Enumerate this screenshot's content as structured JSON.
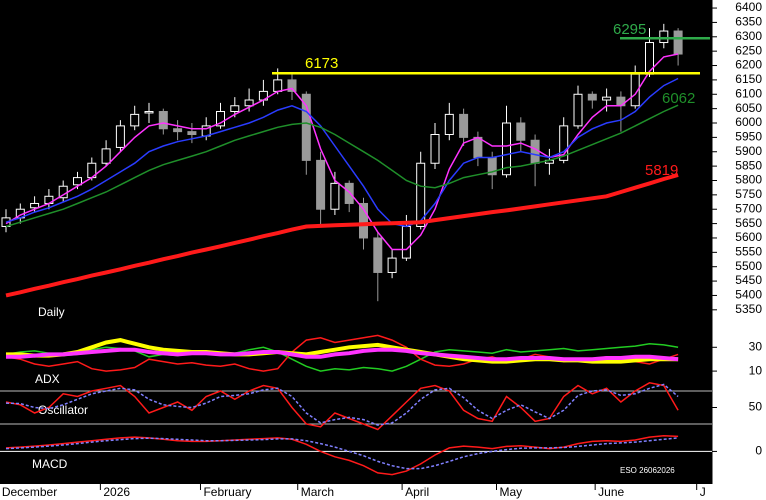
{
  "chart_data": [
    {
      "type": "candlestick",
      "panel_label": "Daily",
      "up_color": "#ffffff",
      "down_color": "#9a9a9a",
      "ylim": [
        5325,
        6428
      ],
      "yticks": [
        6400,
        6350,
        6300,
        6250,
        6200,
        6150,
        6100,
        6050,
        6000,
        5950,
        5900,
        5850,
        5800,
        5750,
        5700,
        5650,
        5600,
        5550,
        5500,
        5450,
        5400,
        5350
      ],
      "xticks": [
        {
          "value": -0.5,
          "label": "December"
        },
        {
          "value": 6.6,
          "label": "2026"
        },
        {
          "value": 13.6,
          "label": "February"
        },
        {
          "value": 20.4,
          "label": "March"
        },
        {
          "value": 27.7,
          "label": "April"
        },
        {
          "value": 34.3,
          "label": "May"
        },
        {
          "value": 41.2,
          "label": "June"
        },
        {
          "value": 48.3,
          "label": "J"
        }
      ],
      "ohlc": [
        [
          5640,
          5700,
          5620,
          5670
        ],
        [
          5670,
          5720,
          5650,
          5700
        ],
        [
          5705,
          5745,
          5690,
          5720
        ],
        [
          5720,
          5770,
          5700,
          5745
        ],
        [
          5740,
          5800,
          5725,
          5780
        ],
        [
          5785,
          5830,
          5770,
          5810
        ],
        [
          5810,
          5880,
          5800,
          5860
        ],
        [
          5860,
          5940,
          5850,
          5910
        ],
        [
          5915,
          6010,
          5900,
          5990
        ],
        [
          5990,
          6060,
          5975,
          6030
        ],
        [
          6035,
          6070,
          6000,
          6040
        ],
        [
          6040,
          6050,
          5960,
          5980
        ],
        [
          5980,
          6010,
          5940,
          5970
        ],
        [
          5970,
          6000,
          5930,
          5960
        ],
        [
          5955,
          6020,
          5940,
          5990
        ],
        [
          5990,
          6070,
          5980,
          6040
        ],
        [
          6040,
          6090,
          6020,
          6060
        ],
        [
          6060,
          6120,
          6040,
          6080
        ],
        [
          6080,
          6150,
          6060,
          6110
        ],
        [
          6110,
          6190,
          6100,
          6150
        ],
        [
          6150,
          6170,
          6080,
          6110
        ],
        [
          6100,
          6110,
          5820,
          5870
        ],
        [
          5870,
          5900,
          5640,
          5700
        ],
        [
          5700,
          5830,
          5680,
          5790
        ],
        [
          5790,
          5800,
          5690,
          5720
        ],
        [
          5720,
          5740,
          5560,
          5600
        ],
        [
          5600,
          5620,
          5380,
          5480
        ],
        [
          5480,
          5560,
          5460,
          5530
        ],
        [
          5530,
          5680,
          5520,
          5640
        ],
        [
          5640,
          5900,
          5630,
          5860
        ],
        [
          5860,
          6000,
          5840,
          5960
        ],
        [
          5960,
          6070,
          5940,
          6030
        ],
        [
          6030,
          6050,
          5920,
          5950
        ],
        [
          5950,
          5970,
          5850,
          5880
        ],
        [
          5880,
          5900,
          5770,
          5820
        ],
        [
          5820,
          6060,
          5810,
          6000
        ],
        [
          6000,
          6020,
          5900,
          5940
        ],
        [
          5940,
          5960,
          5780,
          5860
        ],
        [
          5860,
          5910,
          5820,
          5870
        ],
        [
          5870,
          6020,
          5860,
          5990
        ],
        [
          5990,
          6130,
          5980,
          6100
        ],
        [
          6100,
          6110,
          6050,
          6080
        ],
        [
          6080,
          6120,
          6040,
          6090
        ],
        [
          6090,
          6110,
          5970,
          6060
        ],
        [
          6060,
          6200,
          6050,
          6170
        ],
        [
          6170,
          6330,
          6160,
          6280
        ],
        [
          6280,
          6345,
          6260,
          6320
        ],
        [
          6320,
          6330,
          6200,
          6240
        ]
      ],
      "series": [
        {
          "color": "#ff33ff",
          "values": [
            5650,
            5680,
            5700,
            5720,
            5750,
            5780,
            5810,
            5850,
            5900,
            5950,
            5990,
            6000,
            5990,
            5980,
            5980,
            6000,
            6030,
            6055,
            6080,
            6110,
            6120,
            6060,
            5910,
            5800,
            5760,
            5700,
            5620,
            5560,
            5560,
            5610,
            5700,
            5840,
            5930,
            5950,
            5920,
            5920,
            5930,
            5910,
            5880,
            5890,
            5960,
            6020,
            6060,
            6060,
            6100,
            6180,
            6230,
            6240
          ]
        },
        {
          "color": "#2a3cff",
          "values": [
            5655,
            5670,
            5690,
            5705,
            5725,
            5745,
            5770,
            5800,
            5830,
            5860,
            5900,
            5920,
            5935,
            5945,
            5955,
            5970,
            5985,
            6000,
            6020,
            6045,
            6060,
            6040,
            5990,
            5920,
            5850,
            5780,
            5700,
            5650,
            5640,
            5660,
            5720,
            5800,
            5860,
            5880,
            5880,
            5890,
            5900,
            5890,
            5880,
            5900,
            5950,
            5980,
            6000,
            6010,
            6040,
            6090,
            6130,
            6155
          ]
        },
        {
          "color": "#1f8f2a",
          "values": [
            5640,
            5655,
            5670,
            5685,
            5700,
            5720,
            5740,
            5760,
            5785,
            5810,
            5835,
            5855,
            5870,
            5885,
            5900,
            5920,
            5940,
            5955,
            5970,
            5985,
            5995,
            6000,
            5985,
            5960,
            5930,
            5900,
            5870,
            5835,
            5800,
            5780,
            5775,
            5790,
            5810,
            5820,
            5830,
            5845,
            5850,
            5860,
            5870,
            5885,
            5905,
            5925,
            5945,
            5965,
            5990,
            6015,
            6040,
            6062
          ]
        },
        {
          "color": "#ff1a1a",
          "values": [
            5400,
            5411,
            5423,
            5434,
            5446,
            5457,
            5469,
            5480,
            5491,
            5503,
            5514,
            5526,
            5537,
            5549,
            5560,
            5571,
            5583,
            5594,
            5606,
            5617,
            5629,
            5640,
            5642,
            5644,
            5646,
            5648,
            5650,
            5651,
            5653,
            5655,
            5662,
            5669,
            5676,
            5683,
            5690,
            5696,
            5703,
            5710,
            5717,
            5724,
            5731,
            5738,
            5745,
            5760,
            5775,
            5790,
            5805,
            5819
          ]
        }
      ],
      "hlines": [
        {
          "value": 6173,
          "color": "#ffff00"
        },
        {
          "value": 6295,
          "color": "#2faa4a"
        }
      ]
    },
    {
      "type": "line",
      "panel_label": "ADX",
      "ylim": [
        0,
        42
      ],
      "yticks": [
        30,
        10
      ],
      "series": [
        {
          "color": "#22cc22",
          "values": [
            24,
            26,
            27,
            25,
            23,
            24,
            28,
            30,
            29,
            27,
            22,
            24,
            23,
            25,
            26,
            24,
            25,
            28,
            30,
            26,
            20,
            14,
            10,
            12,
            11,
            13,
            12,
            10,
            14,
            20,
            26,
            28,
            27,
            26,
            25,
            28,
            26,
            27,
            28,
            29,
            27,
            28,
            29,
            30,
            31,
            33,
            32,
            30
          ]
        },
        {
          "color": "#ff1a1a",
          "values": [
            22,
            20,
            16,
            14,
            16,
            18,
            12,
            10,
            11,
            13,
            20,
            18,
            16,
            17,
            15,
            14,
            16,
            12,
            10,
            12,
            26,
            36,
            38,
            34,
            36,
            38,
            40,
            36,
            30,
            20,
            15,
            14,
            16,
            20,
            22,
            18,
            20,
            24,
            22,
            18,
            19,
            20,
            22,
            21,
            18,
            16,
            20,
            24
          ]
        },
        {
          "color": "#ffff00",
          "values": [
            24,
            24,
            23,
            23,
            24,
            26,
            30,
            34,
            36,
            33,
            30,
            28,
            27,
            26,
            26,
            25,
            24,
            24,
            25,
            26,
            25,
            24,
            26,
            28,
            30,
            31,
            32,
            30,
            28,
            26,
            24,
            22,
            20,
            19,
            18,
            18,
            19,
            20,
            20,
            19,
            19,
            18,
            18,
            18,
            19,
            20,
            20,
            20
          ]
        },
        {
          "color": "#ff33ff",
          "values": [
            22,
            22,
            23,
            24,
            24,
            25,
            26,
            27,
            28,
            28,
            26,
            25,
            24,
            25,
            25,
            24,
            24,
            25,
            26,
            26,
            24,
            22,
            22,
            24,
            25,
            27,
            28,
            28,
            27,
            25,
            24,
            23,
            22,
            21,
            20,
            20,
            21,
            21,
            21,
            20,
            20,
            20,
            21,
            21,
            22,
            22,
            21,
            20
          ]
        }
      ]
    },
    {
      "type": "line",
      "panel_label": "Oscillator",
      "ylim": [
        0,
        100
      ],
      "yticks": [
        50
      ],
      "levels": [
        20,
        80
      ],
      "series": [
        {
          "color": "#ff1a1a",
          "values": [
            60,
            55,
            40,
            50,
            75,
            70,
            80,
            85,
            90,
            70,
            40,
            50,
            60,
            45,
            70,
            80,
            65,
            80,
            90,
            85,
            50,
            20,
            15,
            40,
            30,
            20,
            10,
            35,
            60,
            85,
            90,
            80,
            45,
            30,
            25,
            70,
            50,
            25,
            30,
            70,
            90,
            75,
            85,
            60,
            80,
            95,
            90,
            45
          ]
        },
        {
          "color": "#8080ff",
          "dashed": true,
          "values": [
            58,
            57,
            50,
            48,
            55,
            65,
            75,
            80,
            85,
            82,
            65,
            55,
            52,
            50,
            58,
            70,
            72,
            75,
            82,
            85,
            70,
            40,
            22,
            28,
            32,
            28,
            18,
            22,
            40,
            65,
            82,
            85,
            68,
            45,
            30,
            45,
            55,
            42,
            30,
            45,
            72,
            80,
            82,
            72,
            75,
            85,
            92,
            70
          ]
        }
      ]
    },
    {
      "type": "line",
      "panel_label": "MACD",
      "note": "ESO 26062026",
      "ylim": [
        -80,
        60
      ],
      "yticks": [
        0
      ],
      "series": [
        {
          "color": "#ff1a1a",
          "values": [
            10,
            12,
            15,
            18,
            22,
            26,
            30,
            34,
            38,
            40,
            38,
            34,
            30,
            28,
            28,
            30,
            32,
            34,
            36,
            38,
            34,
            20,
            0,
            -15,
            -25,
            -40,
            -60,
            -65,
            -55,
            -35,
            -10,
            10,
            15,
            12,
            8,
            14,
            16,
            12,
            8,
            12,
            22,
            28,
            30,
            28,
            32,
            40,
            44,
            42
          ]
        },
        {
          "color": "#8080ff",
          "dashed": true,
          "values": [
            8,
            10,
            12,
            15,
            18,
            22,
            26,
            30,
            33,
            36,
            37,
            36,
            34,
            32,
            30,
            30,
            31,
            32,
            33,
            35,
            35,
            30,
            22,
            12,
            0,
            -12,
            -28,
            -40,
            -48,
            -48,
            -40,
            -28,
            -15,
            -6,
            0,
            5,
            9,
            10,
            10,
            11,
            14,
            18,
            22,
            24,
            26,
            30,
            34,
            38
          ]
        }
      ]
    }
  ]
}
